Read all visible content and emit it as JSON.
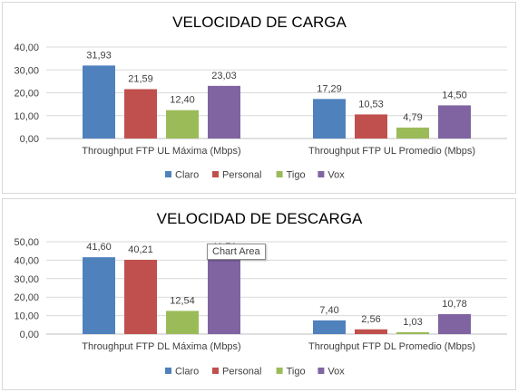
{
  "chart_data": [
    {
      "type": "bar",
      "title": "VELOCIDAD DE CARGA",
      "categories": [
        "Throughput FTP UL Máxima (Mbps)",
        "Throughput FTP UL Promedio (Mbps)"
      ],
      "series": [
        {
          "name": "Claro",
          "values": [
            31.93,
            17.29
          ],
          "labels": [
            "31,93",
            "17,29"
          ],
          "color": "#4f81bd"
        },
        {
          "name": "Personal",
          "values": [
            21.59,
            10.53
          ],
          "labels": [
            "21,59",
            "10,53"
          ],
          "color": "#c0504d"
        },
        {
          "name": "Tigo",
          "values": [
            12.4,
            4.79
          ],
          "labels": [
            "12,40",
            "4,79"
          ],
          "color": "#9bbb59"
        },
        {
          "name": "Vox",
          "values": [
            23.03,
            14.5
          ],
          "labels": [
            "23,03",
            "14,50"
          ],
          "color": "#8064a2"
        }
      ],
      "ylim": [
        0,
        40
      ],
      "yticks": [
        "0,00",
        "10,00",
        "20,00",
        "30,00",
        "40,00"
      ],
      "grid": true,
      "legend": "bottom"
    },
    {
      "type": "bar",
      "title": "VELOCIDAD DE DESCARGA",
      "categories": [
        "Throughput FTP DL Máxima (Mbps)",
        "Throughput FTP DL Promedio (Mbps)"
      ],
      "series": [
        {
          "name": "Claro",
          "values": [
            41.6,
            7.4
          ],
          "labels": [
            "41,60",
            "7,40"
          ],
          "color": "#4f81bd"
        },
        {
          "name": "Personal",
          "values": [
            40.21,
            2.56
          ],
          "labels": [
            "40,21",
            "2,56"
          ],
          "color": "#c0504d"
        },
        {
          "name": "Tigo",
          "values": [
            12.54,
            1.03
          ],
          "labels": [
            "12,54",
            "1,03"
          ],
          "color": "#9bbb59"
        },
        {
          "name": "Vox",
          "values": [
            41.71,
            10.78
          ],
          "labels": [
            "41,71",
            "10,78"
          ],
          "color": "#8064a2"
        }
      ],
      "ylim": [
        0,
        50
      ],
      "yticks": [
        "0,00",
        "10,00",
        "20,00",
        "30,00",
        "40,00",
        "50,00"
      ],
      "grid": true,
      "legend": "bottom"
    }
  ],
  "tooltip": {
    "text": "Chart Area"
  }
}
